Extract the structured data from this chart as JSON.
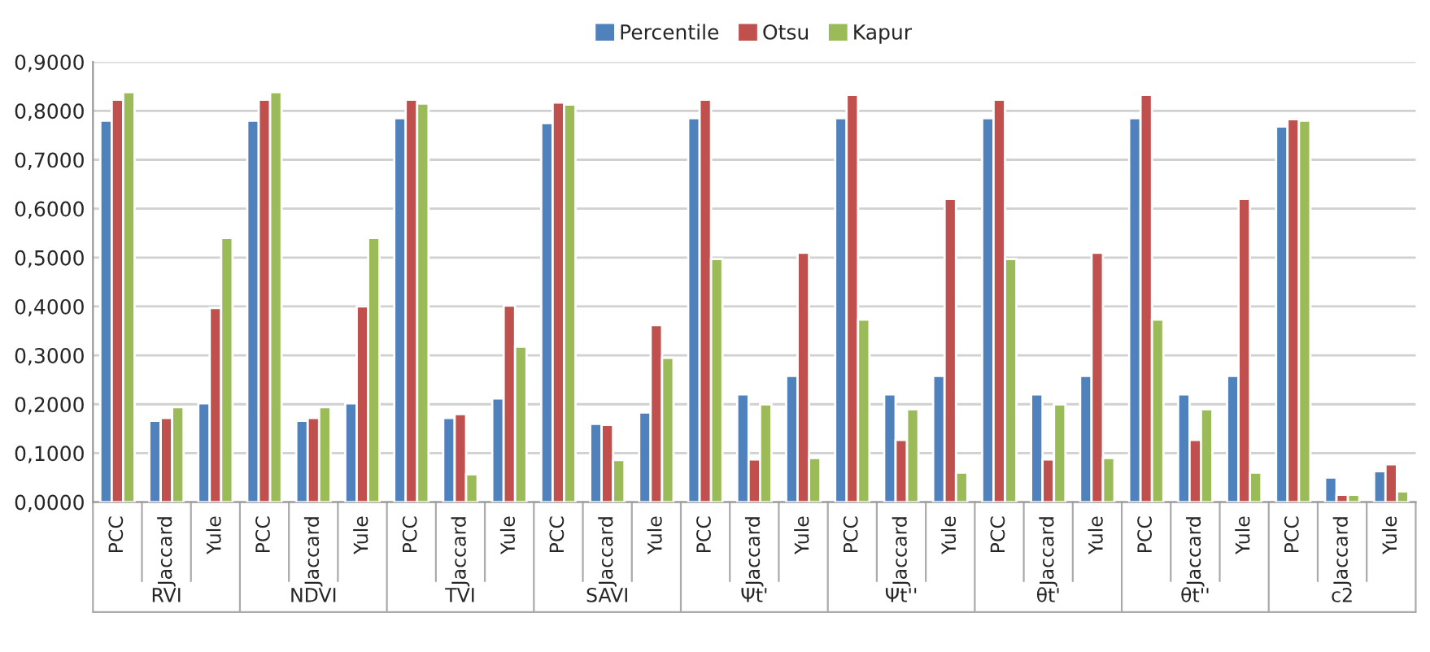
{
  "chart_data": {
    "type": "bar",
    "categories": [
      "PCC",
      "Jaccard",
      "Yule",
      "PCC",
      "Jaccard",
      "Yule",
      "PCC",
      "Jaccard",
      "Yule",
      "PCC",
      "Jaccard",
      "Yule",
      "PCC",
      "Jaccard",
      "Yule",
      "PCC",
      "Jaccard",
      "Yule",
      "PCC",
      "Jaccard",
      "Yule",
      "PCC",
      "Jaccard",
      "Yule",
      "PCC",
      "Jaccard",
      "Yule"
    ],
    "series": [
      {
        "name": "Percentile",
        "color": "#4f81bd",
        "values": [
          0.78,
          0.166,
          0.202,
          0.78,
          0.166,
          0.202,
          0.785,
          0.172,
          0.212,
          0.775,
          0.16,
          0.183,
          0.785,
          0.22,
          0.258,
          0.785,
          0.22,
          0.258,
          0.785,
          0.22,
          0.258,
          0.785,
          0.22,
          0.258,
          0.768,
          0.05,
          0.063
        ]
      },
      {
        "name": "Otsu",
        "color": "#c0504d",
        "values": [
          0.823,
          0.172,
          0.397,
          0.823,
          0.172,
          0.4,
          0.823,
          0.18,
          0.402,
          0.817,
          0.158,
          0.362,
          0.823,
          0.087,
          0.51,
          0.833,
          0.127,
          0.62,
          0.823,
          0.087,
          0.51,
          0.833,
          0.127,
          0.62,
          0.783,
          0.015,
          0.077
        ]
      },
      {
        "name": "Kapur",
        "color": "#9bbb59",
        "values": [
          0.838,
          0.194,
          0.54,
          0.838,
          0.194,
          0.54,
          0.815,
          0.057,
          0.318,
          0.813,
          0.086,
          0.295,
          0.497,
          0.2,
          0.09,
          0.373,
          0.19,
          0.06,
          0.497,
          0.2,
          0.09,
          0.373,
          0.19,
          0.06,
          0.78,
          0.015,
          0.022
        ]
      }
    ],
    "annotations": [
      "RVI",
      "NDVI",
      "TVI",
      "SAVI",
      "Ψt'",
      "Ψt''",
      "θt'",
      "θt''",
      "c2"
    ],
    "ylim": [
      0,
      0.9
    ],
    "yticks": [
      {
        "value": 0,
        "label": "0,0000"
      },
      {
        "value": 0.1,
        "label": "0,1000"
      },
      {
        "value": 0.2,
        "label": "0,2000"
      },
      {
        "value": 0.3,
        "label": "0,3000"
      },
      {
        "value": 0.4,
        "label": "0,4000"
      },
      {
        "value": 0.5,
        "label": "0,5000"
      },
      {
        "value": 0.6,
        "label": "0,6000"
      },
      {
        "value": 0.7,
        "label": "0,7000"
      },
      {
        "value": 0.8,
        "label": "0,8000"
      },
      {
        "value": 0.9,
        "label": "0,9000"
      }
    ],
    "grid": "y",
    "legend": "top"
  }
}
